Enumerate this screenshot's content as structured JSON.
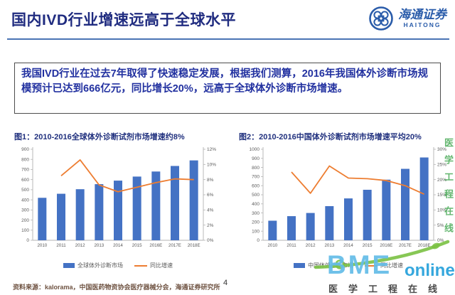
{
  "header": {
    "title": "国内IVD行业增速远高于全球水平",
    "logo": {
      "name_cn": "海通证券",
      "name_en": "HAITONG"
    }
  },
  "highlight_box": {
    "text": "我国IVD行业在过去7年取得了快速稳定发展，根据我们测算，2016年我国体外诊断市场规模预计已达到666亿元，同比增长20%，远高于全球体外诊断市场增速。"
  },
  "chart_data": [
    {
      "type": "bar",
      "combo": "bar+line",
      "title": "图1：2010-2016全球体外诊断试剂市场增速约8%",
      "categories": [
        "2010",
        "2011",
        "2012",
        "2013",
        "2014",
        "2015",
        "2016E",
        "2017E",
        "2018E"
      ],
      "series": [
        {
          "name": "全球体外诊断市场",
          "type": "bar",
          "axis": "left",
          "values": [
            420,
            460,
            505,
            555,
            590,
            630,
            680,
            735,
            790
          ]
        },
        {
          "name": "同比增速",
          "type": "line",
          "axis": "right",
          "values_pct": [
            null,
            8.5,
            10.6,
            7.3,
            6.4,
            7.0,
            7.6,
            8.1,
            8.0
          ]
        }
      ],
      "y_left": {
        "min": 0,
        "max": 900,
        "step": 100
      },
      "y_right": {
        "min": 0,
        "max": 12,
        "step": 2,
        "suffix": "%"
      },
      "gridlines": false,
      "legend_position": "bottom"
    },
    {
      "type": "bar",
      "combo": "bar+line",
      "title": "图2：2010-2016中国体外诊断试剂市场增速平均20%",
      "categories": [
        "2010",
        "2011",
        "2012",
        "2013",
        "2014",
        "2015",
        "2016E",
        "2017E",
        "2018E"
      ],
      "series": [
        {
          "name": "中国体外诊断市场",
          "type": "bar",
          "axis": "left",
          "values": [
            215,
            265,
            300,
            375,
            460,
            555,
            666,
            785,
            910
          ]
        },
        {
          "name": "同比增速",
          "type": "line",
          "axis": "right",
          "values_pct": [
            null,
            22.5,
            15.5,
            24.5,
            20.5,
            20.3,
            19.7,
            18.0,
            15.2
          ]
        }
      ],
      "y_left": {
        "min": 0,
        "max": 1000,
        "step": 100
      },
      "y_right": {
        "min": 0,
        "max": 30,
        "step": 5,
        "suffix": "%"
      },
      "gridlines": false,
      "legend_position": "bottom"
    }
  ],
  "footer": {
    "source": "资料来源：kalorama，中国医药物资协会医疗器械分会，海通证券研究所",
    "page_number": "4"
  },
  "watermark": {
    "bme": "BME",
    "online": "online",
    "caption": "医学工程在线",
    "vertical": "医学工程在线"
  },
  "colors": {
    "bar": "#4472c4",
    "line": "#ed7d31",
    "title_navy": "#202c80",
    "logo_blue": "#2a5caa",
    "watermark_blue": "#63bce8",
    "watermark_green": "#7ac143"
  }
}
